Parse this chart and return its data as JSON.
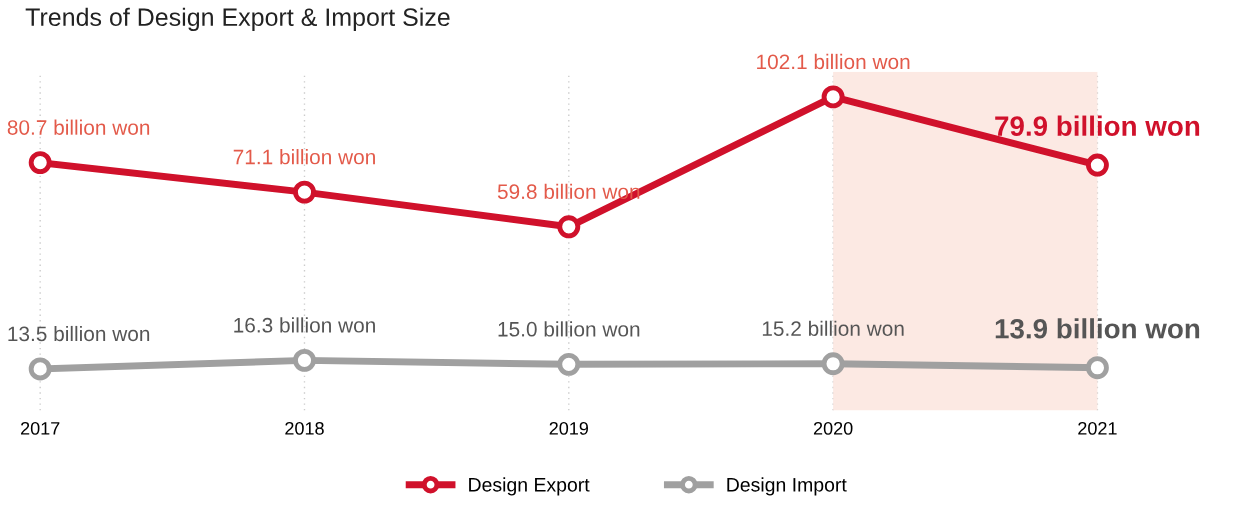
{
  "chart_data": {
    "type": "line",
    "title": "Trends of Design Export & Import Size",
    "categories": [
      "2017",
      "2018",
      "2019",
      "2020",
      "2021"
    ],
    "series": [
      {
        "name": "Design Export",
        "color": "#d0112b",
        "values": [
          80.7,
          71.1,
          59.8,
          102.1,
          79.9
        ],
        "value_labels": [
          "80.7 billion won",
          "71.1 billion won",
          "59.8 billion won",
          "102.1 billion won",
          "79.9 billion won"
        ]
      },
      {
        "name": "Design Import",
        "color": "#a0a0a0",
        "values": [
          13.5,
          16.3,
          15.0,
          15.2,
          13.9
        ],
        "value_labels": [
          "13.5 billion won",
          "16.3 billion won",
          "15.0 billion won",
          "15.2 billion won",
          "13.9 billion won"
        ]
      }
    ],
    "bands": [
      {
        "axis": "x",
        "from": "2020",
        "to": "2021",
        "color": "#fbe3dc"
      }
    ],
    "grid": "x",
    "legend": "bottom",
    "marker": "circle",
    "line_style": "solid"
  }
}
